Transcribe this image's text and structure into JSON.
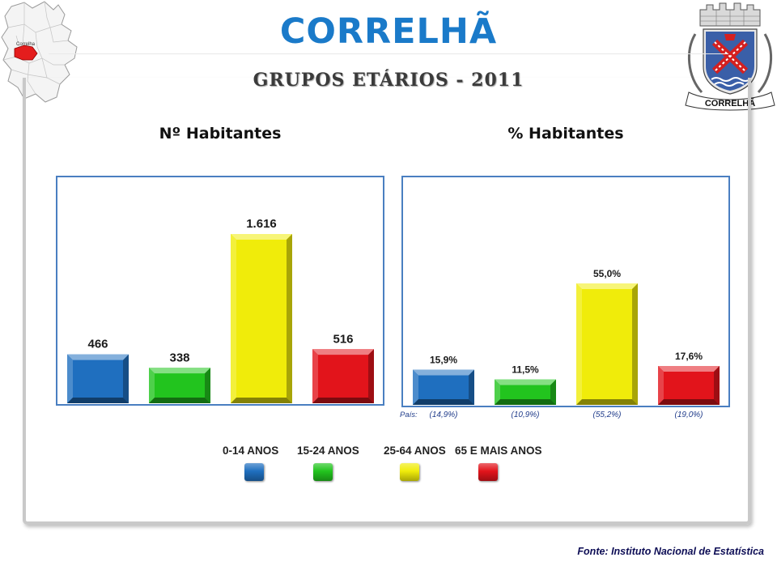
{
  "header": {
    "title": "CORRELHÃ",
    "subtitle": "GRUPOS ETÁRIOS - 2011",
    "map_label": "Correlha",
    "crest_banner": "CORRELHÃ"
  },
  "colors": {
    "title_blue": "#1a7ac9",
    "panel_border": "#4a7fc1",
    "series": [
      "#1f6fbf",
      "#22c41e",
      "#f0ec0a",
      "#e2141b"
    ]
  },
  "chart_data": [
    {
      "type": "bar",
      "title": "Nº Habitantes",
      "categories": [
        "0-14 ANOS",
        "15-24 ANOS",
        "25-64 ANOS",
        "65 E MAIS ANOS"
      ],
      "values": [
        466,
        338,
        1616,
        516
      ],
      "data_labels": [
        "466",
        "338",
        "1.616",
        "516"
      ],
      "ylim": [
        0,
        1900
      ],
      "grid": false,
      "legend": "bottom"
    },
    {
      "type": "bar",
      "title": "% Habitantes",
      "categories": [
        "0-14 ANOS",
        "15-24 ANOS",
        "25-64 ANOS",
        "65 E MAIS ANOS"
      ],
      "values": [
        15.9,
        11.5,
        55.0,
        17.6
      ],
      "data_labels": [
        "15,9%",
        "11,5%",
        "55,0%",
        "17,6%"
      ],
      "country_label": "País:",
      "country_values": [
        "(14,9%)",
        "(10,9%)",
        "(55,2%)",
        "(19,0%)"
      ],
      "ylim": [
        0,
        65
      ],
      "grid": false,
      "legend": "bottom"
    }
  ],
  "legend": {
    "items": [
      "0-14 ANOS",
      "15-24 ANOS",
      "25-64 ANOS",
      "65 E MAIS ANOS"
    ]
  },
  "footer": {
    "source": "Fonte: Instituto Nacional de Estatística"
  }
}
